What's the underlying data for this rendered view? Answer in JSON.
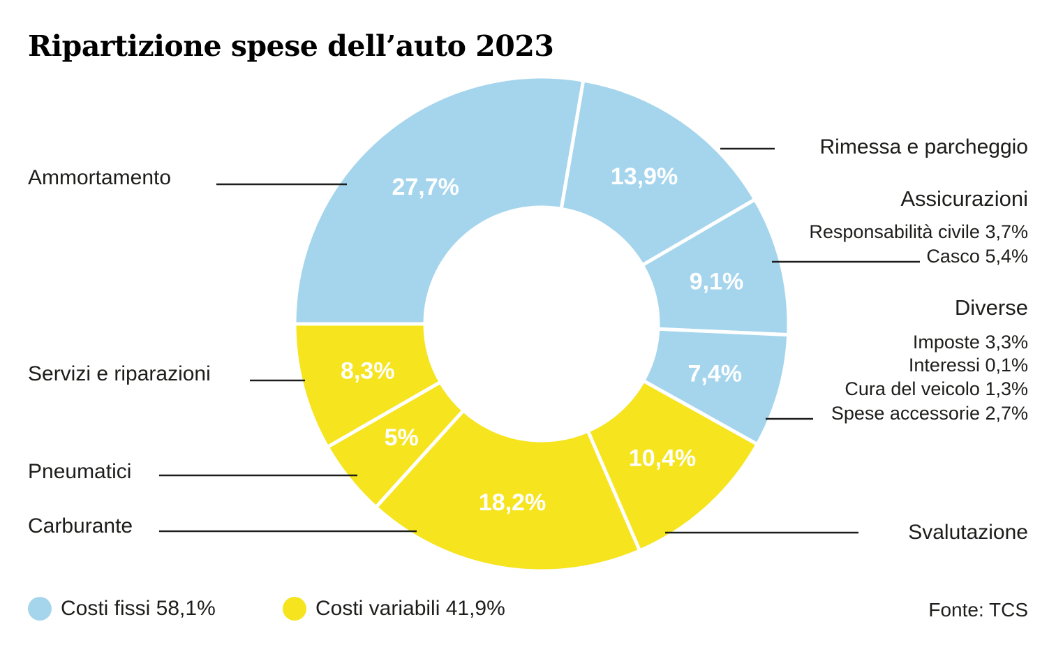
{
  "title": "Ripartizione spese dell’auto 2023",
  "source": "Fonte: TCS",
  "colors": {
    "fixed": "#a5d5ec",
    "variable": "#f5e41e",
    "slice_gap": "#ffffff",
    "pct_text": "#ffffff",
    "text": "#1d1d1b",
    "leader_line": "#1d1d1b"
  },
  "legend": [
    {
      "key": "fixed",
      "label": "Costi fissi 58,1%",
      "value": 58.1
    },
    {
      "key": "variable",
      "label": "Costi variabili 41,9%",
      "value": 41.9
    }
  ],
  "chart_data": {
    "type": "pie",
    "subtype": "donut",
    "unit": "%",
    "title": "Ripartizione spese dell’auto 2023",
    "legend_position": "bottom",
    "slices": [
      {
        "name": "Ammortamento",
        "value": 27.7,
        "label": "27,7%",
        "group": "fixed"
      },
      {
        "name": "Rimessa e parcheggio",
        "value": 13.9,
        "label": "13,9%",
        "group": "fixed"
      },
      {
        "name": "Assicurazioni",
        "value": 9.1,
        "label": "9,1%",
        "group": "fixed",
        "breakdown": [
          {
            "name": "Responsabilità civile",
            "value": 3.7,
            "label": "Responsabilità civile 3,7%"
          },
          {
            "name": "Casco",
            "value": 5.4,
            "label": "Casco 5,4%"
          }
        ]
      },
      {
        "name": "Diverse",
        "value": 7.4,
        "label": "7,4%",
        "group": "fixed",
        "breakdown": [
          {
            "name": "Imposte",
            "value": 3.3,
            "label": "Imposte 3,3%"
          },
          {
            "name": "Interessi",
            "value": 0.1,
            "label": "Interessi 0,1%"
          },
          {
            "name": "Cura del veicolo",
            "value": 1.3,
            "label": "Cura del veicolo 1,3%"
          },
          {
            "name": "Spese accessorie",
            "value": 2.7,
            "label": "Spese accessorie 2,7%"
          }
        ]
      },
      {
        "name": "Svalutazione",
        "value": 10.4,
        "label": "10,4%",
        "group": "variable"
      },
      {
        "name": "Carburante",
        "value": 18.2,
        "label": "18,2%",
        "group": "variable"
      },
      {
        "name": "Pneumatici",
        "value": 5,
        "label": "5%",
        "group": "variable"
      },
      {
        "name": "Servizi e riparazioni",
        "value": 8.3,
        "label": "8,3%",
        "group": "variable"
      }
    ],
    "totals": {
      "fixed": 58.1,
      "variable": 41.9
    }
  }
}
